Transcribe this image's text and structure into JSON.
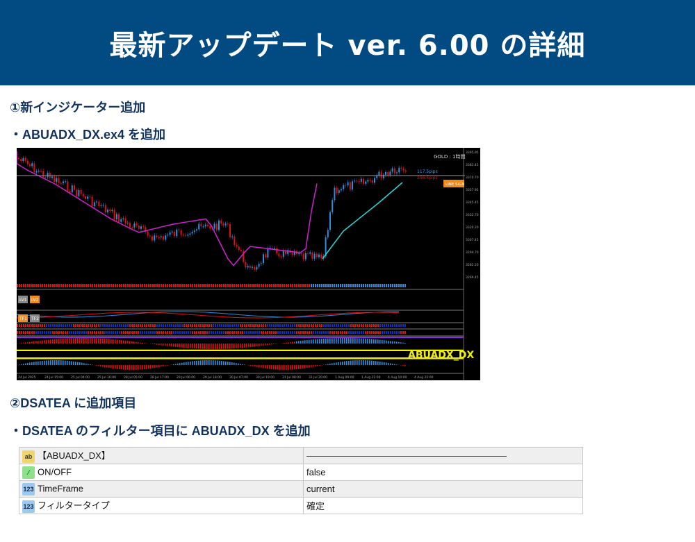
{
  "header": {
    "title": "最新アップデート ver. 6.00 の詳細"
  },
  "section1": {
    "heading": "①新インジケーター追加",
    "bullet": "・ABUADX_DX.ex4 を追加"
  },
  "chart_screenshot": {
    "symbol_label": "GOLD : 1時間",
    "pips_up": "117.5pips",
    "pips_down": "256.5pips",
    "line_sign_button": "LINE SIGN",
    "lv_buttons": [
      "LV1",
      "LV2"
    ],
    "tf_buttons": [
      "TF1",
      "TF2"
    ],
    "indicator_label": "ABUADX_DX",
    "price_ticks": [
      "3395.95",
      "3383.45",
      "3370.70",
      "3357.95",
      "3345.45",
      "3332.70",
      "3320.20",
      "3307.45",
      "3294.70",
      "3282.20",
      "3269.45"
    ],
    "date_ticks": [
      "24 Jul 2025",
      "24 Jul 15:00",
      "25 Jul 04:00",
      "25 Jul 16:00",
      "28 Jul 05:00",
      "28 Jul 17:00",
      "29 Jul 06:00",
      "29 Jul 18:00",
      "30 Jul 07:00",
      "30 Jul 19:00",
      "31 Jul 08:00",
      "31 Jul 20:00",
      "1 Aug 09:00",
      "1 Aug 21:00",
      "4 Aug 10:00",
      "4 Aug 22:00"
    ],
    "colors": {
      "up": "#2a8fe0",
      "down": "#e01010",
      "ma": "#d21fd2",
      "ma2": "#2ad6d6",
      "accent": "#f08a1c",
      "label": "#f0f000"
    }
  },
  "section2": {
    "heading": "②DSATEA に追加項目",
    "bullet": "・DSATEA のフィルター項目に ABUADX_DX を追加"
  },
  "table": {
    "rows": [
      {
        "icon": "ab-icon",
        "name": "【ABUADX_DX】",
        "value": ""
      },
      {
        "icon": "bool-icon",
        "name": "ON/OFF",
        "value": "false"
      },
      {
        "icon": "number-icon",
        "name": "TimeFrame",
        "value": "current"
      },
      {
        "icon": "number-icon",
        "name": "フィルタータイプ",
        "value": "確定"
      }
    ]
  }
}
